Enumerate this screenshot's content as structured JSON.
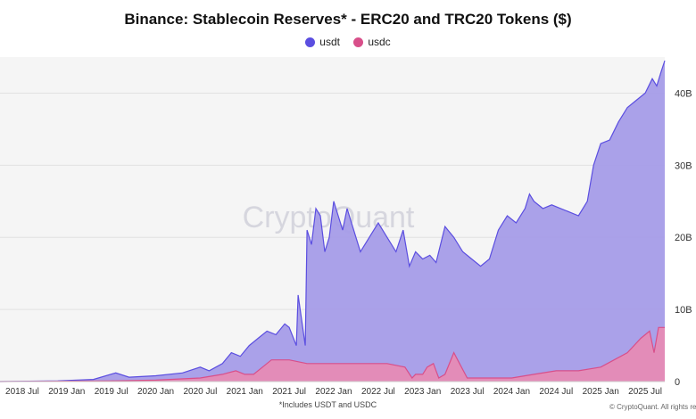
{
  "chart_data": {
    "type": "area",
    "title": "Binance: Stablecoin Reserves* - ERC20 and TRC20 Tokens ($)",
    "footnote": "*Includes USDT and USDC",
    "watermark": "CryptoQuant",
    "copyright": "© CryptoQuant. All rights reserve",
    "ylabel": "",
    "ylim": [
      0,
      45
    ],
    "y_ticks": [
      "0",
      "10B",
      "20B",
      "30B",
      "40B"
    ],
    "y_tick_values": [
      0,
      10,
      20,
      30,
      40
    ],
    "x_ticks": [
      "2018 Jul",
      "2019 Jan",
      "2019 Jul",
      "2020 Jan",
      "2020 Jul",
      "2021 Jan",
      "2021 Jul",
      "2022 Jan",
      "2022 Jul",
      "2023 Jan",
      "2023 Jul",
      "2024 Jan",
      "2024 Jul",
      "2025 Jan",
      "2025 Jul"
    ],
    "x_tick_values": [
      2018.5,
      2019.0,
      2019.5,
      2020.0,
      2020.5,
      2021.0,
      2021.5,
      2022.0,
      2022.5,
      2023.0,
      2023.5,
      2024.0,
      2024.5,
      2025.0,
      2025.5
    ],
    "xlim": [
      2018.25,
      2025.72
    ],
    "grid": true,
    "legend_position": "top-center",
    "series": [
      {
        "name": "usdt",
        "color": "#5b4ee0",
        "fill": "#a59ce8",
        "x": [
          2018.25,
          2018.9,
          2019.3,
          2019.55,
          2019.7,
          2020.0,
          2020.3,
          2020.5,
          2020.6,
          2020.75,
          2020.85,
          2020.95,
          2021.05,
          2021.15,
          2021.25,
          2021.35,
          2021.45,
          2021.5,
          2021.58,
          2021.6,
          2021.68,
          2021.7,
          2021.75,
          2021.8,
          2021.85,
          2021.9,
          2021.95,
          2022.0,
          2022.05,
          2022.1,
          2022.15,
          2022.2,
          2022.3,
          2022.4,
          2022.5,
          2022.6,
          2022.7,
          2022.78,
          2022.85,
          2022.92,
          2023.0,
          2023.08,
          2023.15,
          2023.25,
          2023.35,
          2023.45,
          2023.55,
          2023.65,
          2023.75,
          2023.85,
          2023.95,
          2024.05,
          2024.15,
          2024.2,
          2024.25,
          2024.35,
          2024.45,
          2024.55,
          2024.65,
          2024.75,
          2024.85,
          2024.92,
          2025.0,
          2025.1,
          2025.2,
          2025.3,
          2025.4,
          2025.5,
          2025.58,
          2025.63,
          2025.68,
          2025.72
        ],
        "values": [
          0.0,
          0.1,
          0.3,
          1.2,
          0.6,
          0.8,
          1.2,
          2.0,
          1.5,
          2.5,
          4.0,
          3.5,
          5.0,
          6.0,
          7.0,
          6.5,
          8.0,
          7.5,
          5.0,
          12.0,
          5.0,
          21.0,
          19.0,
          24.0,
          23.0,
          18.0,
          20.0,
          25.0,
          23.0,
          21.0,
          24.0,
          22.0,
          18.0,
          20.0,
          22.0,
          20.0,
          18.0,
          21.0,
          16.0,
          18.0,
          17.0,
          17.5,
          16.5,
          21.5,
          20.0,
          18.0,
          17.0,
          16.0,
          17.0,
          21.0,
          23.0,
          22.0,
          24.0,
          26.0,
          25.0,
          24.0,
          24.5,
          24.0,
          23.5,
          23.0,
          25.0,
          30.0,
          33.0,
          33.5,
          36.0,
          38.0,
          39.0,
          40.0,
          42.0,
          41.0,
          43.0,
          44.5
        ]
      },
      {
        "name": "usdc",
        "color": "#d84f8a",
        "fill": "#e98ab3",
        "x": [
          2018.25,
          2019.0,
          2019.5,
          2020.0,
          2020.5,
          2020.75,
          2020.9,
          2021.0,
          2021.1,
          2021.2,
          2021.3,
          2021.5,
          2021.7,
          2021.9,
          2022.0,
          2022.2,
          2022.4,
          2022.6,
          2022.8,
          2022.88,
          2022.92,
          2023.0,
          2023.05,
          2023.12,
          2023.15,
          2023.18,
          2023.25,
          2023.35,
          2023.5,
          2023.75,
          2024.0,
          2024.25,
          2024.5,
          2024.75,
          2025.0,
          2025.15,
          2025.3,
          2025.45,
          2025.55,
          2025.6,
          2025.65,
          2025.72
        ],
        "values": [
          0.0,
          0.05,
          0.1,
          0.2,
          0.5,
          1.0,
          1.5,
          1.0,
          1.0,
          2.0,
          3.0,
          3.0,
          2.5,
          2.5,
          2.5,
          2.5,
          2.5,
          2.5,
          2.0,
          0.5,
          1.0,
          1.0,
          2.0,
          2.5,
          1.5,
          0.5,
          1.0,
          4.0,
          0.5,
          0.5,
          0.5,
          1.0,
          1.5,
          1.5,
          2.0,
          3.0,
          4.0,
          6.0,
          7.0,
          4.0,
          7.5,
          7.5
        ]
      }
    ]
  }
}
